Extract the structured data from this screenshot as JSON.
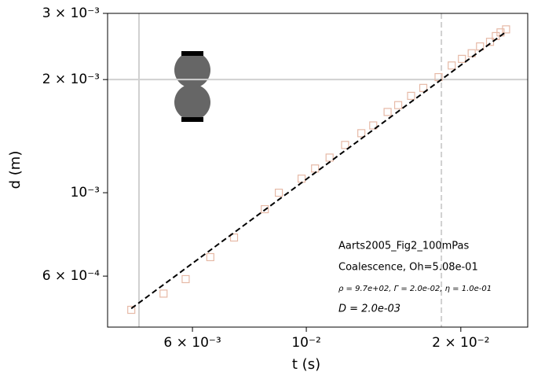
{
  "chart_data": {
    "type": "scatter",
    "x_label": "t (s)",
    "y_label": "d (m)",
    "xscale": "log",
    "yscale": "log",
    "xlim": [
      0.0041,
      0.027
    ],
    "ylim": [
      0.000439,
      0.003
    ],
    "xticks": [
      {
        "value": 0.006,
        "label": "6 × 10⁻³"
      },
      {
        "value": 0.01,
        "label": "10⁻²"
      },
      {
        "value": 0.02,
        "label": "2 × 10⁻²"
      }
    ],
    "yticks": [
      {
        "value": 0.0006,
        "label": "6 × 10⁻⁴"
      },
      {
        "value": 0.001,
        "label": "10⁻³"
      },
      {
        "value": 0.002,
        "label": "2 × 10⁻³"
      },
      {
        "value": 0.003,
        "label": "3 × 10⁻³"
      }
    ],
    "hlines": [
      0.002
    ],
    "vlines": [
      0.00472,
      0.01833
    ],
    "vline_styles": [
      "solid",
      "dashed"
    ],
    "series": [
      {
        "color": "#e6b9a6",
        "marker": "square",
        "x": [
          0.00456,
          0.00527,
          0.00582,
          0.0065,
          0.00723,
          0.0083,
          0.00884,
          0.00979,
          0.0104,
          0.0111,
          0.0119,
          0.0128,
          0.0135,
          0.0144,
          0.0151,
          0.016,
          0.0169,
          0.0181,
          0.0192,
          0.0201,
          0.021,
          0.0218,
          0.0228,
          0.0234,
          0.0239,
          0.0245
        ],
        "values": [
          0.000488,
          0.000539,
          0.000589,
          0.000674,
          0.00076,
          0.000904,
          0.001,
          0.00109,
          0.00116,
          0.00124,
          0.00134,
          0.00144,
          0.00151,
          0.00164,
          0.00171,
          0.00181,
          0.0019,
          0.00203,
          0.00218,
          0.00227,
          0.00235,
          0.00245,
          0.00252,
          0.00261,
          0.00267,
          0.00272
        ]
      },
      {
        "color": "#000000",
        "marker": "none",
        "linestyle": "dashed",
        "x": [
          0.00456,
          0.0245
        ],
        "values": [
          0.000492,
          0.00268
        ]
      }
    ],
    "annotations": [
      "Aarts2005_Fig2_100mPas",
      "Coalescence, Oh=5.08e-01",
      "ρ = 9.7e+02, Γ = 2.0e-02, η = 1.0e-01",
      "D = 2.0e-03"
    ]
  }
}
